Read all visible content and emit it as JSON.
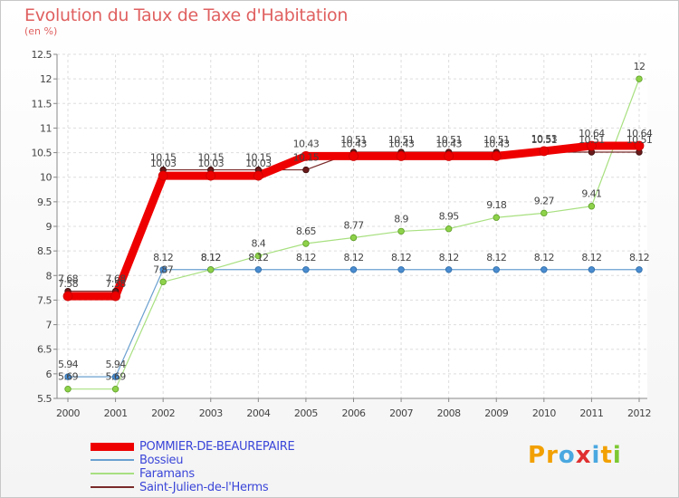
{
  "title": "Evolution du Taux de Taxe d'Habitation",
  "subtitle": "(en %)",
  "logo": {
    "letters": [
      "P",
      "r",
      "o",
      "x",
      "i",
      "t",
      "i"
    ],
    "colors": [
      "#f2a000",
      "#f2a000",
      "#4aa8e0",
      "#e03030",
      "#4aa8e0",
      "#f2a000",
      "#7cc832"
    ]
  },
  "chart_data": {
    "type": "line",
    "title": "Evolution du Taux de Taxe d'Habitation",
    "ylabel": "(en %)",
    "xlabel": "",
    "x": [
      "2000",
      "2001",
      "2002",
      "2003",
      "2004",
      "2005",
      "2006",
      "2007",
      "2008",
      "2009",
      "2010",
      "2011",
      "2012"
    ],
    "ylim": [
      5.5,
      12.5
    ],
    "yticks": [
      "5.5",
      "6",
      "6.5",
      "7",
      "7.5",
      "8",
      "8.5",
      "9",
      "9.5",
      "10",
      "10.5",
      "11",
      "11.5",
      "12",
      "12.5"
    ],
    "series": [
      {
        "name": "POMMIER-DE-BEAUREPAIRE",
        "color": "#ee0000",
        "values": [
          7.58,
          7.58,
          10.03,
          10.03,
          10.03,
          10.43,
          10.43,
          10.43,
          10.43,
          10.43,
          10.53,
          10.64,
          10.64
        ],
        "labels": [
          "7.58",
          "7.58",
          "10.03",
          "10.03",
          "10.03",
          "10.43",
          "10.43",
          "10.43",
          "10.43",
          "10.43",
          "10.53",
          "10.64",
          "10.64"
        ]
      },
      {
        "name": "Bossieu",
        "color": "#6aa0d0",
        "values": [
          5.94,
          5.94,
          8.12,
          8.12,
          8.12,
          8.12,
          8.12,
          8.12,
          8.12,
          8.12,
          8.12,
          8.12,
          8.12
        ],
        "labels": [
          "5.94",
          "5.94",
          "8.12",
          "8.12",
          "8.12",
          "8.12",
          "8.12",
          "8.12",
          "8.12",
          "8.12",
          "8.12",
          "8.12",
          "8.12"
        ]
      },
      {
        "name": "Faramans",
        "color": "#a8e080",
        "values": [
          5.69,
          5.69,
          7.87,
          8.12,
          8.4,
          8.65,
          8.77,
          8.9,
          8.95,
          9.18,
          9.27,
          9.41,
          12
        ],
        "labels": [
          "5.69",
          "5.69",
          "7.87",
          "8.12",
          "8.4",
          "8.65",
          "8.77",
          "8.9",
          "8.95",
          "9.18",
          "9.27",
          "9.41",
          "12"
        ]
      },
      {
        "name": "Saint-Julien-de-l'Herms",
        "color": "#7a2a2a",
        "values": [
          7.68,
          7.68,
          10.15,
          10.15,
          10.15,
          10.15,
          10.51,
          10.51,
          10.51,
          10.51,
          10.51,
          10.51,
          10.51
        ],
        "labels": [
          "7.68",
          "7.68",
          "10.15",
          "10.15",
          "10.15",
          "10.15",
          "10.51",
          "10.51",
          "10.51",
          "10.51",
          "10.51",
          "10.51",
          "10.51"
        ]
      }
    ]
  }
}
